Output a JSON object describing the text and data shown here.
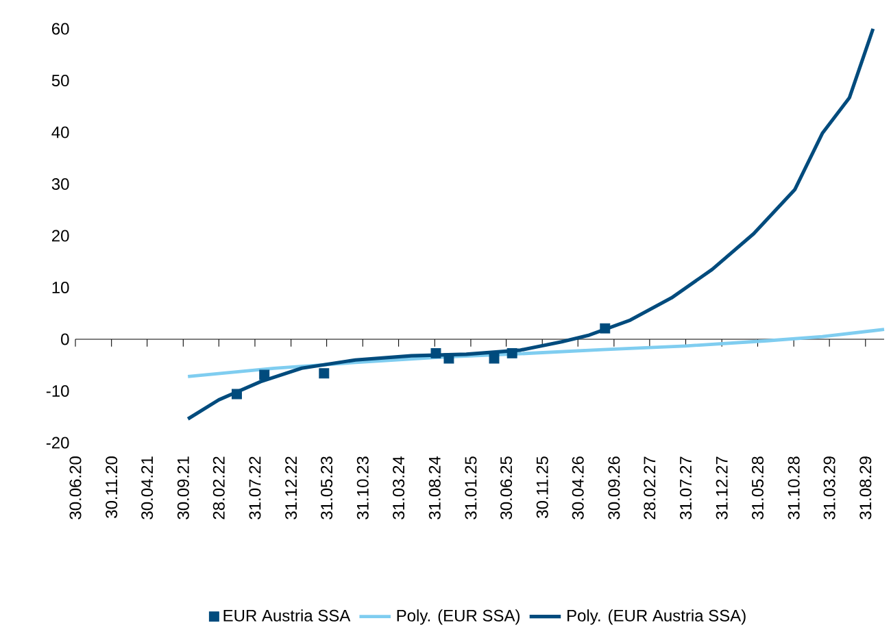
{
  "chart_data": {
    "type": "line",
    "series": [
      {
        "name": "EUR Austria SSA",
        "type": "scatter",
        "marker": "square",
        "color": "#004b7d",
        "x": [
          "2022-05-15",
          "2022-09-09",
          "2023-05-20",
          "2024-09-05",
          "2024-10-30",
          "2025-05-10",
          "2025-07-25",
          "2026-08-23"
        ],
        "values": [
          -10.6,
          -6.9,
          -6.6,
          -2.7,
          -3.7,
          -3.7,
          -2.7,
          2.1
        ]
      },
      {
        "name": "Poly. (EUR SSA)",
        "color": "#7fcdf0",
        "x": [
          "2021-10-20",
          "2022-10-20",
          "2023-09-30",
          "2024-09-15",
          "2025-08-30",
          "2026-08-14",
          "2027-07-29",
          "2028-07-10",
          "2029-03-01",
          "2029-11-18"
        ],
        "values": [
          -7.2,
          -5.6,
          -4.5,
          -3.5,
          -2.8,
          -2.0,
          -1.3,
          -0.3,
          0.5,
          1.9
        ]
      },
      {
        "name": "Poly. (EUR Austria SSA)",
        "color": "#004b7d",
        "x": [
          "2021-10-20",
          "2022-02-28",
          "2022-08-24",
          "2023-02-14",
          "2023-09-30",
          "2024-05-24",
          "2025-01-12",
          "2025-08-30",
          "2026-02-20",
          "2026-06-17",
          "2026-12-08",
          "2027-06-01",
          "2027-11-20",
          "2028-05-14",
          "2028-11-04",
          "2029-03-01",
          "2029-06-24",
          "2029-10-02"
        ],
        "values": [
          -15.4,
          -11.7,
          -8.2,
          -5.6,
          -4.0,
          -3.2,
          -2.9,
          -2.1,
          -0.5,
          0.8,
          3.7,
          8.0,
          13.5,
          20.4,
          28.9,
          39.8,
          46.7,
          60
        ]
      }
    ],
    "xlim": [
      "2020-06-30",
      "2029-11-18"
    ],
    "xticks": [
      {
        "value": "2020-06-30",
        "label": "30.06.20"
      },
      {
        "value": "2020-11-30",
        "label": "30.11.20"
      },
      {
        "value": "2021-04-30",
        "label": "30.04.21"
      },
      {
        "value": "2021-09-30",
        "label": "30.09.21"
      },
      {
        "value": "2022-02-28",
        "label": "28.02.22"
      },
      {
        "value": "2022-07-31",
        "label": "31.07.22"
      },
      {
        "value": "2022-12-31",
        "label": "31.12.22"
      },
      {
        "value": "2023-05-31",
        "label": "31.05.23"
      },
      {
        "value": "2023-10-31",
        "label": "31.10.23"
      },
      {
        "value": "2024-03-31",
        "label": "31.03.24"
      },
      {
        "value": "2024-08-31",
        "label": "31.08.24"
      },
      {
        "value": "2025-01-31",
        "label": "31.01.25"
      },
      {
        "value": "2025-06-30",
        "label": "30.06.25"
      },
      {
        "value": "2025-11-30",
        "label": "30.11.25"
      },
      {
        "value": "2026-04-30",
        "label": "30.04.26"
      },
      {
        "value": "2026-09-30",
        "label": "30.09.26"
      },
      {
        "value": "2027-02-28",
        "label": "28.02.27"
      },
      {
        "value": "2027-07-31",
        "label": "31.07.27"
      },
      {
        "value": "2027-12-31",
        "label": "31.12.27"
      },
      {
        "value": "2028-05-31",
        "label": "31.05.28"
      },
      {
        "value": "2028-10-31",
        "label": "31.10.28"
      },
      {
        "value": "2029-03-31",
        "label": "31.03.29"
      },
      {
        "value": "2029-08-31",
        "label": "31.08.29"
      }
    ],
    "ylim": [
      -20,
      60
    ],
    "yticks": [
      -20,
      -10,
      0,
      10,
      20,
      30,
      40,
      50,
      60
    ],
    "legend": "bottom"
  }
}
